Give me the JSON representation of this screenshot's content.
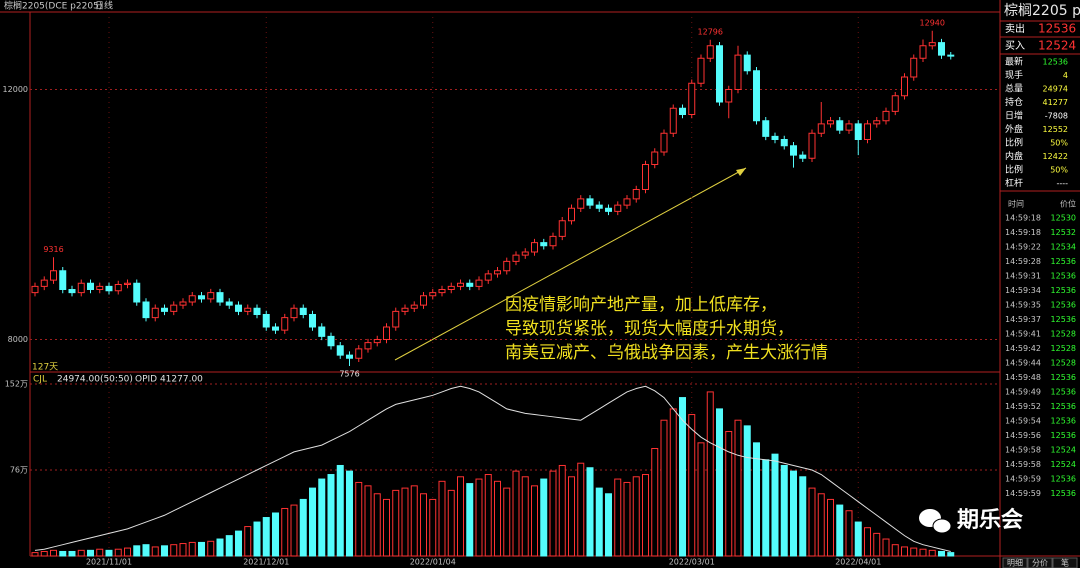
{
  "header": {
    "symbol": "棕榈2205(DCE p2205)",
    "period": "日线",
    "bars_label": "127天"
  },
  "chart_data": {
    "type": "candlestick",
    "categories": [
      null,
      null,
      null,
      null,
      null,
      null,
      null,
      null,
      "2021/11/01",
      null,
      null,
      null,
      null,
      null,
      null,
      null,
      null,
      null,
      null,
      null,
      null,
      null,
      null,
      null,
      null,
      "2021/12/01",
      null,
      null,
      null,
      null,
      null,
      null,
      null,
      null,
      null,
      null,
      null,
      null,
      null,
      null,
      null,
      null,
      null,
      "2022/01/04",
      null,
      null,
      null,
      null,
      null,
      null,
      null,
      null,
      null,
      null,
      null,
      null,
      null,
      null,
      null,
      null,
      null,
      null,
      null,
      null,
      null,
      null,
      null,
      null,
      null,
      null,
      null,
      "2022/03/01",
      null,
      null,
      null,
      null,
      null,
      null,
      null,
      null,
      null,
      null,
      null,
      null,
      null,
      null,
      null,
      null,
      null,
      "2022/04/01",
      null,
      null,
      null,
      null,
      null,
      null,
      null,
      null,
      null,
      null
    ],
    "open": [
      8750,
      8850,
      8950,
      9100,
      8800,
      8750,
      8900,
      8800,
      8850,
      8780,
      8880,
      8900,
      8600,
      8350,
      8500,
      8450,
      8550,
      8600,
      8700,
      8650,
      8750,
      8600,
      8550,
      8450,
      8500,
      8400,
      8200,
      8150,
      8350,
      8500,
      8400,
      8200,
      8050,
      7900,
      7750,
      7700,
      7850,
      7950,
      8000,
      8200,
      8450,
      8500,
      8550,
      8700,
      8750,
      8800,
      8850,
      8900,
      8850,
      8950,
      9050,
      9100,
      9250,
      9350,
      9400,
      9550,
      9500,
      9650,
      9900,
      10100,
      10250,
      10150,
      10100,
      10050,
      10150,
      10250,
      10400,
      10800,
      11000,
      11300,
      11700,
      11600,
      12100,
      12500,
      12700,
      11800,
      12000,
      12550,
      12300,
      11500,
      11250,
      11200,
      11100,
      10950,
      10900,
      11300,
      11450,
      11500,
      11350,
      11450,
      11200,
      11450,
      11500,
      11650,
      11900,
      12200,
      12500,
      12700,
      12750,
      12550
    ],
    "high": [
      8910,
      9010,
      9316,
      9160,
      8860,
      8960,
      8960,
      8910,
      8910,
      8940,
      8960,
      8960,
      8660,
      8560,
      8560,
      8610,
      8660,
      8760,
      8760,
      8810,
      8810,
      8660,
      8610,
      8560,
      8560,
      8460,
      8260,
      8410,
      8560,
      8560,
      8460,
      8260,
      8110,
      7960,
      7810,
      7910,
      8010,
      8060,
      8260,
      8510,
      8560,
      8610,
      8760,
      8810,
      8860,
      8910,
      8960,
      8960,
      9010,
      9110,
      9160,
      9310,
      9410,
      9460,
      9610,
      9610,
      9710,
      9960,
      10160,
      10310,
      10310,
      10210,
      10160,
      10210,
      10310,
      10460,
      10860,
      11060,
      11360,
      11760,
      11760,
      12160,
      12560,
      12796,
      12760,
      12060,
      12700,
      12610,
      12360,
      11560,
      11310,
      11260,
      11160,
      11010,
      11360,
      11800,
      11560,
      11560,
      11510,
      11510,
      11510,
      11560,
      11710,
      11960,
      12260,
      12560,
      12800,
      12940,
      12810,
      12600
    ],
    "low": [
      8690,
      8790,
      8890,
      8740,
      8690,
      8690,
      8740,
      8740,
      8720,
      8720,
      8820,
      8540,
      8290,
      8290,
      8390,
      8390,
      8490,
      8540,
      8590,
      8590,
      8540,
      8490,
      8390,
      8390,
      8340,
      8140,
      8090,
      8090,
      8290,
      8340,
      8140,
      7990,
      7840,
      7690,
      7576,
      7640,
      7790,
      7890,
      7940,
      8140,
      8390,
      8440,
      8490,
      8640,
      8690,
      8740,
      8790,
      8790,
      8790,
      8890,
      8990,
      9040,
      9190,
      9290,
      9340,
      9440,
      9440,
      9590,
      9840,
      10040,
      10090,
      10040,
      9990,
      9990,
      10090,
      10190,
      10340,
      10740,
      10940,
      11240,
      11540,
      11540,
      12040,
      12440,
      11740,
      11540,
      11940,
      12240,
      11440,
      11190,
      11140,
      11040,
      10750,
      10840,
      10840,
      11240,
      11390,
      11290,
      11290,
      10950,
      11140,
      11390,
      11440,
      11590,
      11840,
      12140,
      12440,
      12640,
      12490,
      12480
    ],
    "close": [
      8850,
      8950,
      9100,
      8800,
      8750,
      8900,
      8800,
      8850,
      8780,
      8880,
      8900,
      8600,
      8350,
      8500,
      8450,
      8550,
      8600,
      8700,
      8650,
      8750,
      8600,
      8550,
      8450,
      8500,
      8400,
      8200,
      8150,
      8350,
      8500,
      8400,
      8200,
      8050,
      7900,
      7750,
      7700,
      7850,
      7950,
      8000,
      8200,
      8450,
      8500,
      8550,
      8700,
      8750,
      8800,
      8850,
      8900,
      8850,
      8950,
      9050,
      9100,
      9250,
      9350,
      9400,
      9550,
      9500,
      9650,
      9900,
      10100,
      10250,
      10150,
      10100,
      10050,
      10150,
      10250,
      10400,
      10800,
      11000,
      11300,
      11700,
      11600,
      12100,
      12500,
      12700,
      11800,
      12000,
      12550,
      12300,
      11500,
      11250,
      11200,
      11100,
      10950,
      10900,
      11300,
      11450,
      11500,
      11350,
      11450,
      11200,
      11450,
      11500,
      11650,
      11900,
      12200,
      12500,
      12700,
      12750,
      12550,
      12536
    ],
    "extreme_labels": [
      {
        "index": 2,
        "field": "high"
      },
      {
        "index": 34,
        "field": "low"
      },
      {
        "index": 73,
        "field": "high"
      },
      {
        "index": 97,
        "field": "high"
      }
    ],
    "ylim": [
      7480,
      13240
    ],
    "yticks": [
      8000,
      12000
    ],
    "grid": true,
    "up_color": "#ff3232",
    "down_color": "#54fcfc",
    "annotation": [
      "因疫情影响产地产量，加上低库存，",
      "导致现货紧张，现货大幅度升水期货，",
      "南美豆减产、乌俄战争因素，产生大涨行情"
    ],
    "volume": {
      "indicator": "CJL",
      "volume_readout": "24974.00(50:50)",
      "oi_readout": "OPID 41277.00",
      "ylim": [
        0,
        152
      ],
      "yticks": [
        {
          "value": 152,
          "label": "152万"
        },
        {
          "value": 76,
          "label": "76万"
        }
      ],
      "values": [
        3,
        4,
        5,
        4,
        4,
        5,
        5,
        6,
        5,
        6,
        7,
        9,
        10,
        8,
        9,
        10,
        11,
        12,
        12,
        13,
        15,
        18,
        22,
        26,
        30,
        34,
        38,
        42,
        45,
        50,
        60,
        68,
        72,
        80,
        75,
        65,
        62,
        55,
        50,
        58,
        60,
        62,
        55,
        50,
        66,
        58,
        70,
        64,
        68,
        72,
        66,
        60,
        75,
        70,
        62,
        68,
        75,
        80,
        70,
        82,
        78,
        60,
        55,
        68,
        65,
        70,
        72,
        95,
        120,
        130,
        140,
        125,
        100,
        145,
        130,
        110,
        120,
        115,
        100,
        85,
        90,
        80,
        75,
        70,
        60,
        55,
        50,
        45,
        40,
        30,
        25,
        20,
        15,
        10,
        8,
        7,
        6,
        5,
        4,
        3
      ],
      "oi": [
        5,
        6,
        8,
        10,
        12,
        14,
        16,
        18,
        20,
        22,
        24,
        27,
        30,
        33,
        36,
        40,
        44,
        48,
        52,
        56,
        60,
        64,
        68,
        72,
        76,
        80,
        84,
        88,
        92,
        94,
        96,
        98,
        102,
        106,
        110,
        115,
        120,
        125,
        130,
        134,
        136,
        138,
        140,
        142,
        145,
        148,
        150,
        148,
        145,
        140,
        135,
        130,
        128,
        126,
        125,
        124,
        123,
        122,
        121,
        120,
        125,
        130,
        135,
        140,
        145,
        148,
        150,
        146,
        140,
        130,
        120,
        112,
        105,
        100,
        96,
        92,
        89,
        87,
        86,
        85,
        84,
        82,
        80,
        78,
        76,
        72,
        66,
        60,
        54,
        48,
        42,
        36,
        30,
        24,
        18,
        13,
        10,
        8,
        6,
        4
      ],
      "oi_color": "#e0e0e0"
    }
  },
  "quote": {
    "title": "棕榈2205 p",
    "ask_label": "卖出",
    "ask": "12536",
    "bid_label": "买入",
    "bid": "12524",
    "rows": [
      {
        "label": "最新",
        "value": "12536",
        "color": "#30ff30"
      },
      {
        "label": "现手",
        "value": "4",
        "color": "#ffff40"
      },
      {
        "label": "总量",
        "value": "24974",
        "color": "#ffff40"
      },
      {
        "label": "持仓",
        "value": "41277",
        "color": "#ffff40"
      },
      {
        "label": "日增",
        "value": "-7808",
        "color": "#ffffff"
      },
      {
        "label": "外盘",
        "value": "12552",
        "color": "#ffff40"
      },
      {
        "label": "比例",
        "value": "50%",
        "color": "#ffff40"
      },
      {
        "label": "内盘",
        "value": "12422",
        "color": "#ffff40"
      },
      {
        "label": "比例",
        "value": "50%",
        "color": "#ffff40"
      },
      {
        "label": "杠杆",
        "value": "----",
        "color": "#ffffff"
      }
    ]
  },
  "trades": {
    "headers": [
      "时间",
      "价位"
    ],
    "rows": [
      [
        "14:59:18",
        "12530"
      ],
      [
        "14:59:18",
        "12532"
      ],
      [
        "14:59:22",
        "12534"
      ],
      [
        "14:59:28",
        "12536"
      ],
      [
        "14:59:31",
        "12536"
      ],
      [
        "14:59:34",
        "12536"
      ],
      [
        "14:59:35",
        "12536"
      ],
      [
        "14:59:37",
        "12536"
      ],
      [
        "14:59:41",
        "12528"
      ],
      [
        "14:59:42",
        "12528"
      ],
      [
        "14:59:44",
        "12528"
      ],
      [
        "14:59:48",
        "12536"
      ],
      [
        "14:59:49",
        "12536"
      ],
      [
        "14:59:52",
        "12536"
      ],
      [
        "14:59:54",
        "12536"
      ],
      [
        "14:59:56",
        "12536"
      ],
      [
        "14:59:58",
        "12524"
      ],
      [
        "14:59:58",
        "12524"
      ],
      [
        "14:59:59",
        "12536"
      ],
      [
        "14:59:59",
        "12536"
      ]
    ],
    "tabs": [
      "明细",
      "分价",
      "笔"
    ]
  },
  "watermark": "期乐会"
}
